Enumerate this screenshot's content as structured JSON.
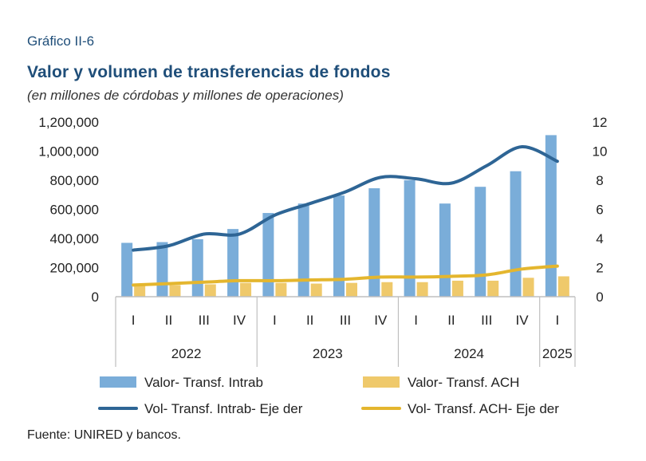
{
  "header": {
    "kicker": "Gráfico II-6",
    "title": "Valor y volumen de transferencias de fondos",
    "subtitle": "(en millones de córdobas y millones de operaciones)"
  },
  "footer": {
    "source": "Fuente: UNIRED y bancos."
  },
  "colors": {
    "bar_intrab": "#7aadd9",
    "bar_ach": "#efc96b",
    "line_intrab": "#2e6595",
    "line_ach": "#e4b62e",
    "axis": "#bfbfbf"
  },
  "chart_data": {
    "type": "bar",
    "title": "Valor y volumen de transferencias de fondos",
    "categories": [
      "I",
      "II",
      "III",
      "IV",
      "I",
      "II",
      "III",
      "IV",
      "I",
      "II",
      "III",
      "IV",
      "I"
    ],
    "groups": [
      {
        "label": "2022",
        "count": 4
      },
      {
        "label": "2023",
        "count": 4
      },
      {
        "label": "2024",
        "count": 4
      },
      {
        "label": "2025",
        "count": 1
      }
    ],
    "y_left": {
      "ylim": [
        0,
        1200000
      ],
      "ticks": [
        "0",
        "200,000",
        "400,000",
        "600,000",
        "800,000",
        "1,000,000",
        "1,200,000"
      ],
      "tick_values": [
        0,
        200000,
        400000,
        600000,
        800000,
        1000000,
        1200000
      ]
    },
    "y_right": {
      "ylim": [
        0,
        12
      ],
      "ticks": [
        "0",
        "2",
        "4",
        "6",
        "8",
        "10",
        "12"
      ],
      "tick_values": [
        0,
        2,
        4,
        6,
        8,
        10,
        12
      ]
    },
    "series": [
      {
        "name": "Valor- Transf. Intrab",
        "kind": "bar",
        "axis": "left",
        "values": [
          370000,
          375000,
          395000,
          465000,
          575000,
          640000,
          695000,
          745000,
          800000,
          640000,
          755000,
          862000,
          1110000
        ]
      },
      {
        "name": "Valor- Transf. ACH",
        "kind": "bar",
        "axis": "left",
        "values": [
          75000,
          80000,
          85000,
          95000,
          95000,
          90000,
          95000,
          100000,
          100000,
          110000,
          110000,
          130000,
          140000
        ]
      },
      {
        "name": "Vol- Transf. Intrab- Eje der",
        "kind": "line",
        "axis": "right",
        "values": [
          3.2,
          3.5,
          4.3,
          4.3,
          5.6,
          6.4,
          7.2,
          8.2,
          8.1,
          7.8,
          9.0,
          10.3,
          9.3
        ]
      },
      {
        "name": "Vol- Transf. ACH- Eje der",
        "kind": "line",
        "axis": "right",
        "values": [
          0.8,
          0.9,
          1.0,
          1.1,
          1.1,
          1.15,
          1.2,
          1.35,
          1.35,
          1.4,
          1.5,
          1.9,
          2.1
        ]
      }
    ],
    "grid": false,
    "legend": "bottom"
  }
}
